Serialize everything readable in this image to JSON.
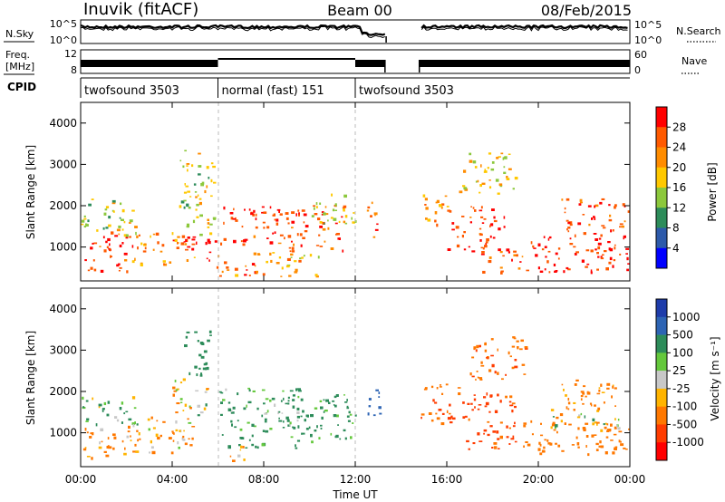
{
  "header": {
    "station": "Inuvik (fitACF)",
    "beam": "Beam 00",
    "date": "08/Feb/2015"
  },
  "nsky_panel": {
    "left_label": "N.Sky",
    "tick_hi": "10^5",
    "tick_lo": "10^0",
    "right_label": "N.Search",
    "right_tick_hi": "10^5",
    "right_tick_lo": "10^0"
  },
  "freq_panel": {
    "left_label_1": "Freq.",
    "left_label_2": "[MHz]",
    "tick_hi": "12",
    "tick_lo": "8",
    "right_label": "Nave",
    "right_tick_hi": "60",
    "right_tick_lo": "0"
  },
  "cpid": {
    "label": "CPID",
    "segments": [
      {
        "name": "twofsound 3503",
        "start_h": 0,
        "end_h": 6
      },
      {
        "name": "normal (fast) 151",
        "start_h": 6,
        "end_h": 12
      },
      {
        "name": "twofsound 3503",
        "start_h": 12,
        "end_h": 24
      }
    ]
  },
  "axes": {
    "xlabel": "Time UT",
    "ylabel": "Slant Range [km]",
    "x_ticks": [
      "00:00",
      "04:00",
      "08:00",
      "12:00",
      "16:00",
      "20:00",
      "00:00"
    ],
    "y_ticks": [
      "1000",
      "2000",
      "3000",
      "4000"
    ]
  },
  "colorbars": {
    "power": {
      "label": "Power [dB]",
      "ticks": [
        "28",
        "24",
        "20",
        "16",
        "12",
        "8",
        "4"
      ],
      "colors": [
        "#ff0000",
        "#ff5a00",
        "#ff8c00",
        "#ffc800",
        "#8cc83c",
        "#2d8c5a",
        "#2d5aaa",
        "#0000ff"
      ]
    },
    "velocity": {
      "label": "Velocity [m s⁻¹]",
      "ticks": [
        "1000",
        "500",
        "100",
        "25",
        "-25",
        "-100",
        "-500",
        "-1000"
      ],
      "colors": [
        "#1e3caa",
        "#2d64b4",
        "#2d8c5a",
        "#64c83c",
        "#c8c8c8",
        "#ffb400",
        "#ff7800",
        "#ff3c00",
        "#ff0000"
      ]
    }
  },
  "chart_data": [
    {
      "type": "heatmap",
      "title": "Power",
      "xlabel": "Time UT",
      "ylabel": "Slant Range [km]",
      "xlim": [
        0,
        24
      ],
      "ylim": [
        180,
        4500
      ],
      "colorbar_label": "Power [dB]",
      "data_gap_h": [
        13.3,
        14.8
      ],
      "regions": [
        {
          "t0": 0.0,
          "t1": 2.0,
          "r0": 400,
          "r1": 1400,
          "v": 26
        },
        {
          "t0": 0.0,
          "t1": 2.5,
          "r0": 1300,
          "r1": 2200,
          "v": 14
        },
        {
          "t0": 2.0,
          "t1": 5.0,
          "r0": 600,
          "r1": 1400,
          "v": 22
        },
        {
          "t0": 4.5,
          "t1": 6.0,
          "r0": 700,
          "r1": 1300,
          "v": 28
        },
        {
          "t0": 4.3,
          "t1": 5.8,
          "r0": 1300,
          "r1": 3400,
          "v": 14
        },
        {
          "t0": 5.8,
          "t1": 8.0,
          "r0": 300,
          "r1": 900,
          "v": 22
        },
        {
          "t0": 6.0,
          "t1": 9.0,
          "r0": 1000,
          "r1": 2000,
          "v": 26
        },
        {
          "t0": 8.0,
          "t1": 10.5,
          "r0": 300,
          "r1": 900,
          "v": 18
        },
        {
          "t0": 9.0,
          "t1": 11.5,
          "r0": 900,
          "r1": 2100,
          "v": 24
        },
        {
          "t0": 10.0,
          "t1": 12.0,
          "r0": 1500,
          "r1": 2300,
          "v": 14
        },
        {
          "t0": 12.5,
          "t1": 13.1,
          "r0": 1200,
          "r1": 2100,
          "v": 24
        },
        {
          "t0": 14.8,
          "t1": 16.0,
          "r0": 1500,
          "r1": 2300,
          "v": 20
        },
        {
          "t0": 16.0,
          "t1": 18.5,
          "r0": 900,
          "r1": 2000,
          "v": 26
        },
        {
          "t0": 17.5,
          "t1": 19.5,
          "r0": 400,
          "r1": 1000,
          "v": 24
        },
        {
          "t0": 19.5,
          "t1": 24.0,
          "r0": 400,
          "r1": 1300,
          "v": 28
        },
        {
          "t0": 21.0,
          "t1": 24.0,
          "r0": 1300,
          "r1": 2200,
          "v": 26
        },
        {
          "t0": 16.5,
          "t1": 19.0,
          "r0": 2300,
          "r1": 3300,
          "v": 16
        }
      ]
    },
    {
      "type": "heatmap",
      "title": "Velocity",
      "xlabel": "Time UT",
      "ylabel": "Slant Range [km]",
      "xlim": [
        0,
        24
      ],
      "ylim": [
        180,
        4500
      ],
      "colorbar_label": "Velocity [m s⁻¹]",
      "data_gap_h": [
        13.3,
        14.8
      ],
      "regions": [
        {
          "t0": 0.0,
          "t1": 2.5,
          "r0": 350,
          "r1": 1200,
          "v": -150
        },
        {
          "t0": 0.0,
          "t1": 2.5,
          "r0": 1200,
          "r1": 1900,
          "v": 80
        },
        {
          "t0": 2.5,
          "t1": 5.0,
          "r0": 500,
          "r1": 1400,
          "v": -120
        },
        {
          "t0": 4.0,
          "t1": 5.5,
          "r0": 1400,
          "r1": 2400,
          "v": 0
        },
        {
          "t0": 4.5,
          "t1": 5.8,
          "r0": 2400,
          "r1": 3500,
          "v": 300
        },
        {
          "t0": 6.0,
          "t1": 9.5,
          "r0": 600,
          "r1": 2100,
          "v": 150
        },
        {
          "t0": 6.5,
          "t1": 7.5,
          "r0": 300,
          "r1": 700,
          "v": -100
        },
        {
          "t0": 9.0,
          "t1": 12.0,
          "r0": 800,
          "r1": 2000,
          "v": 180
        },
        {
          "t0": 12.5,
          "t1": 13.1,
          "r0": 1200,
          "r1": 2100,
          "v": 700
        },
        {
          "t0": 14.8,
          "t1": 16.5,
          "r0": 1200,
          "r1": 2200,
          "v": -450
        },
        {
          "t0": 16.5,
          "t1": 19.0,
          "r0": 600,
          "r1": 2000,
          "v": -600
        },
        {
          "t0": 17.0,
          "t1": 19.5,
          "r0": 2300,
          "r1": 3400,
          "v": -400
        },
        {
          "t0": 19.0,
          "t1": 24.0,
          "r0": 500,
          "r1": 1300,
          "v": -300
        },
        {
          "t0": 20.5,
          "t1": 23.5,
          "r0": 1000,
          "r1": 1600,
          "v": 0
        },
        {
          "t0": 21.0,
          "t1": 24.0,
          "r0": 1600,
          "r1": 2300,
          "v": -200
        }
      ]
    }
  ]
}
